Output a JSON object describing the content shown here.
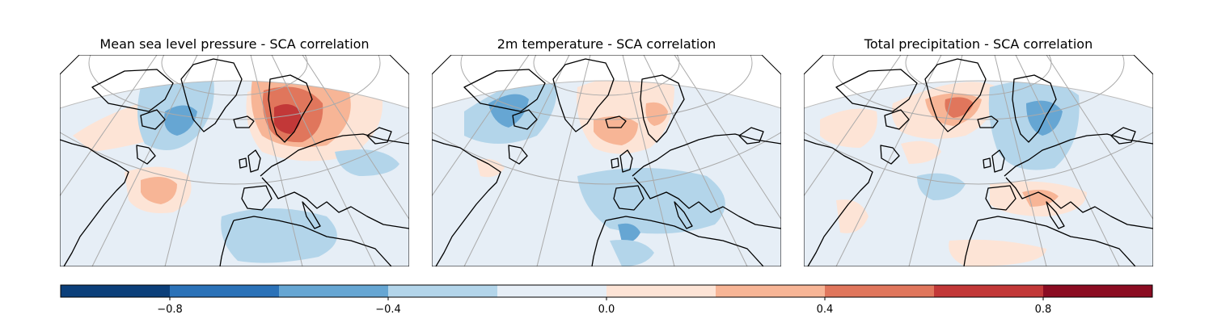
{
  "panels": [
    {
      "title": "Mean sea level pressure - SCA correlation"
    },
    {
      "title": "2m temperature - SCA correlation"
    },
    {
      "title": "Total precipitation - SCA correlation"
    }
  ],
  "colorbar": {
    "ticks": [
      {
        "value": -0.8,
        "label": "−0.8"
      },
      {
        "value": -0.4,
        "label": "−0.4"
      },
      {
        "value": 0.0,
        "label": "0.0"
      },
      {
        "value": 0.4,
        "label": "0.4"
      },
      {
        "value": 0.8,
        "label": "0.8"
      }
    ],
    "range": [
      -1.0,
      1.0
    ],
    "bins": [
      {
        "from": -1.0,
        "to": -0.8,
        "color": "#0b3f7a"
      },
      {
        "from": -0.8,
        "to": -0.6,
        "color": "#2b72b8"
      },
      {
        "from": -0.6,
        "to": -0.4,
        "color": "#66a6d3"
      },
      {
        "from": -0.4,
        "to": -0.2,
        "color": "#b3d5ea"
      },
      {
        "from": -0.2,
        "to": 0.0,
        "color": "#e6eef6"
      },
      {
        "from": 0.0,
        "to": 0.2,
        "color": "#fde4d6"
      },
      {
        "from": 0.2,
        "to": 0.4,
        "color": "#f7b596"
      },
      {
        "from": 0.4,
        "to": 0.6,
        "color": "#e0765c"
      },
      {
        "from": 0.6,
        "to": 0.8,
        "color": "#c23838"
      },
      {
        "from": 0.8,
        "to": 1.0,
        "color": "#8b0c22"
      }
    ]
  }
}
